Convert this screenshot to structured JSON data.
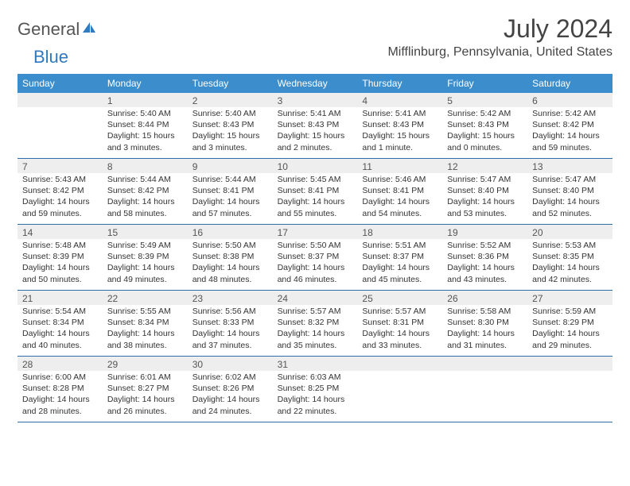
{
  "logo": {
    "text_gray": "General",
    "text_blue": "Blue"
  },
  "title": "July 2024",
  "location": "Mifflinburg, Pennsylvania, United States",
  "colors": {
    "header_bg": "#3c8dcc",
    "header_text": "#ffffff",
    "daynum_bg": "#eeeeee",
    "week_border": "#2f6fa8",
    "text": "#333333",
    "logo_gray": "#555555",
    "logo_blue": "#2f7ac0"
  },
  "typography": {
    "title_fontsize": 32,
    "location_fontsize": 16,
    "header_fontsize": 12,
    "daynum_fontsize": 12,
    "body_fontsize": 10.5
  },
  "layout": {
    "columns": 7,
    "rows": 5,
    "first_weekday_offset": 1
  },
  "day_names": [
    "Sunday",
    "Monday",
    "Tuesday",
    "Wednesday",
    "Thursday",
    "Friday",
    "Saturday"
  ],
  "days": [
    {
      "n": 1,
      "sunrise": "5:40 AM",
      "sunset": "8:44 PM",
      "daylight": "15 hours and 3 minutes."
    },
    {
      "n": 2,
      "sunrise": "5:40 AM",
      "sunset": "8:43 PM",
      "daylight": "15 hours and 3 minutes."
    },
    {
      "n": 3,
      "sunrise": "5:41 AM",
      "sunset": "8:43 PM",
      "daylight": "15 hours and 2 minutes."
    },
    {
      "n": 4,
      "sunrise": "5:41 AM",
      "sunset": "8:43 PM",
      "daylight": "15 hours and 1 minute."
    },
    {
      "n": 5,
      "sunrise": "5:42 AM",
      "sunset": "8:43 PM",
      "daylight": "15 hours and 0 minutes."
    },
    {
      "n": 6,
      "sunrise": "5:42 AM",
      "sunset": "8:42 PM",
      "daylight": "14 hours and 59 minutes."
    },
    {
      "n": 7,
      "sunrise": "5:43 AM",
      "sunset": "8:42 PM",
      "daylight": "14 hours and 59 minutes."
    },
    {
      "n": 8,
      "sunrise": "5:44 AM",
      "sunset": "8:42 PM",
      "daylight": "14 hours and 58 minutes."
    },
    {
      "n": 9,
      "sunrise": "5:44 AM",
      "sunset": "8:41 PM",
      "daylight": "14 hours and 57 minutes."
    },
    {
      "n": 10,
      "sunrise": "5:45 AM",
      "sunset": "8:41 PM",
      "daylight": "14 hours and 55 minutes."
    },
    {
      "n": 11,
      "sunrise": "5:46 AM",
      "sunset": "8:41 PM",
      "daylight": "14 hours and 54 minutes."
    },
    {
      "n": 12,
      "sunrise": "5:47 AM",
      "sunset": "8:40 PM",
      "daylight": "14 hours and 53 minutes."
    },
    {
      "n": 13,
      "sunrise": "5:47 AM",
      "sunset": "8:40 PM",
      "daylight": "14 hours and 52 minutes."
    },
    {
      "n": 14,
      "sunrise": "5:48 AM",
      "sunset": "8:39 PM",
      "daylight": "14 hours and 50 minutes."
    },
    {
      "n": 15,
      "sunrise": "5:49 AM",
      "sunset": "8:39 PM",
      "daylight": "14 hours and 49 minutes."
    },
    {
      "n": 16,
      "sunrise": "5:50 AM",
      "sunset": "8:38 PM",
      "daylight": "14 hours and 48 minutes."
    },
    {
      "n": 17,
      "sunrise": "5:50 AM",
      "sunset": "8:37 PM",
      "daylight": "14 hours and 46 minutes."
    },
    {
      "n": 18,
      "sunrise": "5:51 AM",
      "sunset": "8:37 PM",
      "daylight": "14 hours and 45 minutes."
    },
    {
      "n": 19,
      "sunrise": "5:52 AM",
      "sunset": "8:36 PM",
      "daylight": "14 hours and 43 minutes."
    },
    {
      "n": 20,
      "sunrise": "5:53 AM",
      "sunset": "8:35 PM",
      "daylight": "14 hours and 42 minutes."
    },
    {
      "n": 21,
      "sunrise": "5:54 AM",
      "sunset": "8:34 PM",
      "daylight": "14 hours and 40 minutes."
    },
    {
      "n": 22,
      "sunrise": "5:55 AM",
      "sunset": "8:34 PM",
      "daylight": "14 hours and 38 minutes."
    },
    {
      "n": 23,
      "sunrise": "5:56 AM",
      "sunset": "8:33 PM",
      "daylight": "14 hours and 37 minutes."
    },
    {
      "n": 24,
      "sunrise": "5:57 AM",
      "sunset": "8:32 PM",
      "daylight": "14 hours and 35 minutes."
    },
    {
      "n": 25,
      "sunrise": "5:57 AM",
      "sunset": "8:31 PM",
      "daylight": "14 hours and 33 minutes."
    },
    {
      "n": 26,
      "sunrise": "5:58 AM",
      "sunset": "8:30 PM",
      "daylight": "14 hours and 31 minutes."
    },
    {
      "n": 27,
      "sunrise": "5:59 AM",
      "sunset": "8:29 PM",
      "daylight": "14 hours and 29 minutes."
    },
    {
      "n": 28,
      "sunrise": "6:00 AM",
      "sunset": "8:28 PM",
      "daylight": "14 hours and 28 minutes."
    },
    {
      "n": 29,
      "sunrise": "6:01 AM",
      "sunset": "8:27 PM",
      "daylight": "14 hours and 26 minutes."
    },
    {
      "n": 30,
      "sunrise": "6:02 AM",
      "sunset": "8:26 PM",
      "daylight": "14 hours and 24 minutes."
    },
    {
      "n": 31,
      "sunrise": "6:03 AM",
      "sunset": "8:25 PM",
      "daylight": "14 hours and 22 minutes."
    }
  ],
  "labels": {
    "sunrise": "Sunrise:",
    "sunset": "Sunset:",
    "daylight": "Daylight:"
  }
}
